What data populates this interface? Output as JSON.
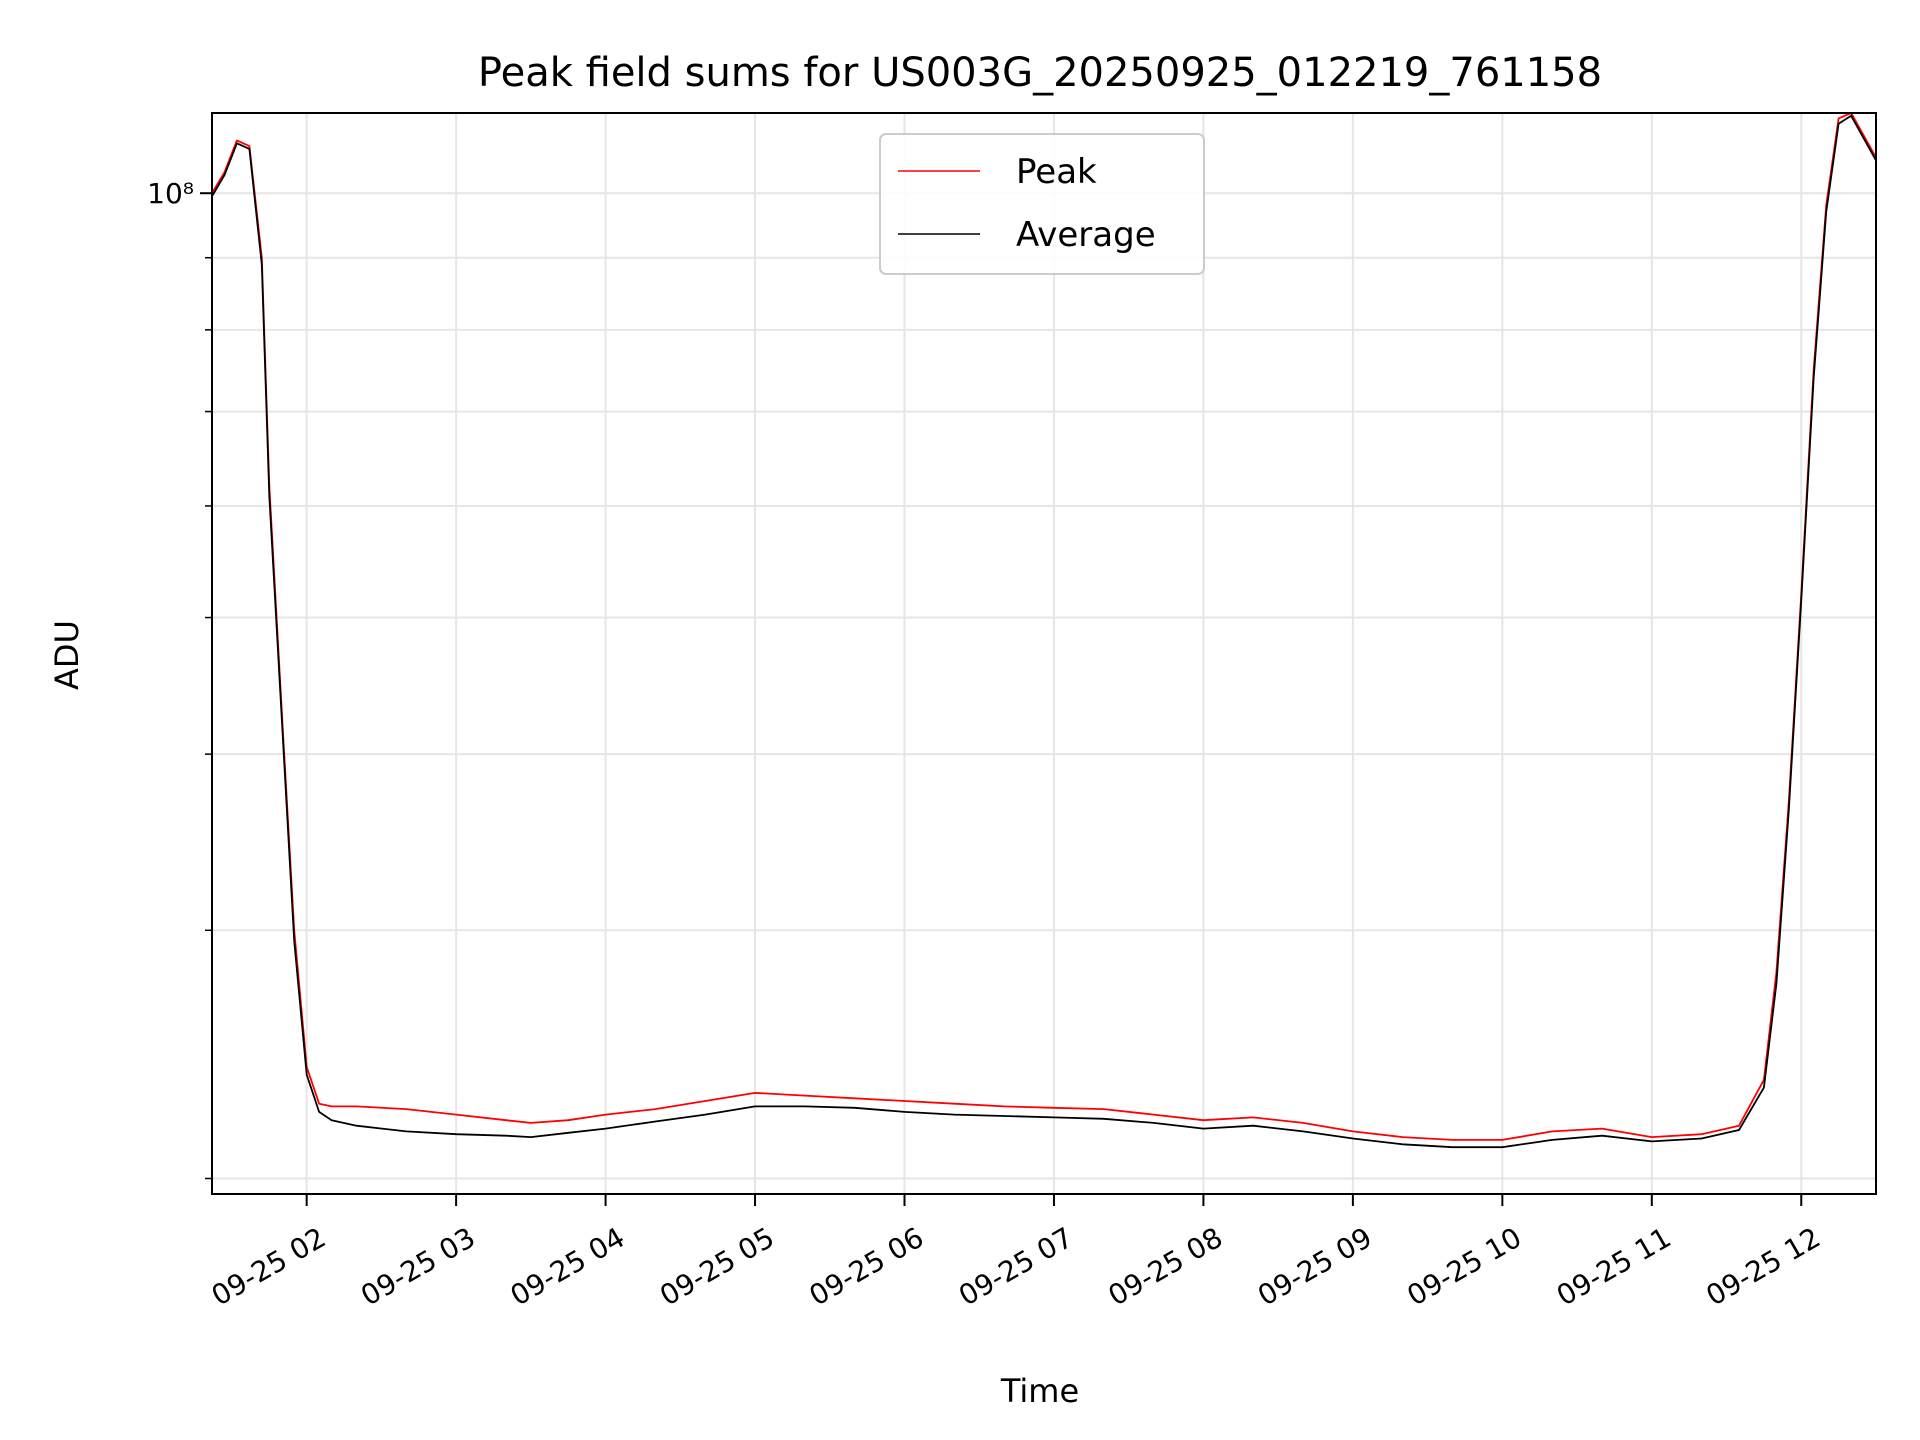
{
  "chart_data": {
    "type": "line",
    "title": "Peak field sums for US003G_20250925_012219_761158",
    "xlabel": "Time",
    "ylabel": "ADU",
    "y_scale": "log",
    "xlim": [
      "09-25 01:22",
      "09-25 12:30"
    ],
    "ylim": [
      19500000,
      114000000
    ],
    "x_tick_labels": [
      "09-25 02",
      "09-25 03",
      "09-25 04",
      "09-25 05",
      "09-25 06",
      "09-25 07",
      "09-25 08",
      "09-25 09",
      "09-25 10",
      "09-25 11",
      "09-25 12"
    ],
    "x_tick_times": [
      "09-25 02:00",
      "09-25 03:00",
      "09-25 04:00",
      "09-25 05:00",
      "09-25 06:00",
      "09-25 07:00",
      "09-25 08:00",
      "09-25 09:00",
      "09-25 10:00",
      "09-25 11:00",
      "09-25 12:00"
    ],
    "y_tick_label": "10⁸",
    "y_tick_value": 100000000,
    "y_minor_ticks": [
      20000000,
      30000000,
      40000000,
      50000000,
      60000000,
      70000000,
      80000000,
      90000000
    ],
    "grid": true,
    "legend_position": "top-center",
    "x": [
      "09-25 01:22",
      "09-25 01:27",
      "09-25 01:32",
      "09-25 01:37",
      "09-25 01:42",
      "09-25 01:45",
      "09-25 01:50",
      "09-25 01:55",
      "09-25 02:00",
      "09-25 02:05",
      "09-25 02:10",
      "09-25 02:20",
      "09-25 02:40",
      "09-25 03:00",
      "09-25 03:20",
      "09-25 03:30",
      "09-25 03:45",
      "09-25 04:00",
      "09-25 04:20",
      "09-25 04:40",
      "09-25 05:00",
      "09-25 05:20",
      "09-25 05:40",
      "09-25 06:00",
      "09-25 06:20",
      "09-25 06:40",
      "09-25 07:00",
      "09-25 07:20",
      "09-25 07:40",
      "09-25 08:00",
      "09-25 08:20",
      "09-25 08:40",
      "09-25 09:00",
      "09-25 09:20",
      "09-25 09:40",
      "09-25 10:00",
      "09-25 10:20",
      "09-25 10:40",
      "09-25 11:00",
      "09-25 11:20",
      "09-25 11:35",
      "09-25 11:45",
      "09-25 11:50",
      "09-25 11:55",
      "09-25 12:00",
      "09-25 12:05",
      "09-25 12:10",
      "09-25 12:15",
      "09-25 12:20",
      "09-25 12:30"
    ],
    "series": [
      {
        "name": "Peak",
        "color": "#ff0000",
        "values": [
          100000000,
          103500000,
          109000000,
          108000000,
          90000000,
          62000000,
          43000000,
          30000000,
          24000000,
          22600000,
          22500000,
          22500000,
          22400000,
          22200000,
          22000000,
          21900000,
          22000000,
          22200000,
          22400000,
          22700000,
          23000000,
          22900000,
          22800000,
          22700000,
          22600000,
          22500000,
          22450000,
          22400000,
          22200000,
          22000000,
          22100000,
          21900000,
          21600000,
          21400000,
          21300000,
          21300000,
          21600000,
          21700000,
          21400000,
          21500000,
          21800000,
          23500000,
          28000000,
          37000000,
          52000000,
          75000000,
          98000000,
          113000000,
          114000000,
          106000000
        ]
      },
      {
        "name": "Average",
        "color": "#000000",
        "values": [
          99500000,
          103000000,
          108500000,
          107500000,
          89000000,
          61000000,
          42500000,
          29500000,
          23700000,
          22300000,
          22000000,
          21800000,
          21600000,
          21500000,
          21450000,
          21400000,
          21550000,
          21700000,
          21950000,
          22200000,
          22500000,
          22500000,
          22450000,
          22300000,
          22200000,
          22150000,
          22100000,
          22050000,
          21900000,
          21700000,
          21800000,
          21600000,
          21350000,
          21150000,
          21050000,
          21050000,
          21300000,
          21450000,
          21250000,
          21350000,
          21650000,
          23200000,
          27500000,
          36500000,
          51500000,
          74000000,
          97000000,
          112000000,
          113500000,
          105500000
        ]
      }
    ]
  }
}
